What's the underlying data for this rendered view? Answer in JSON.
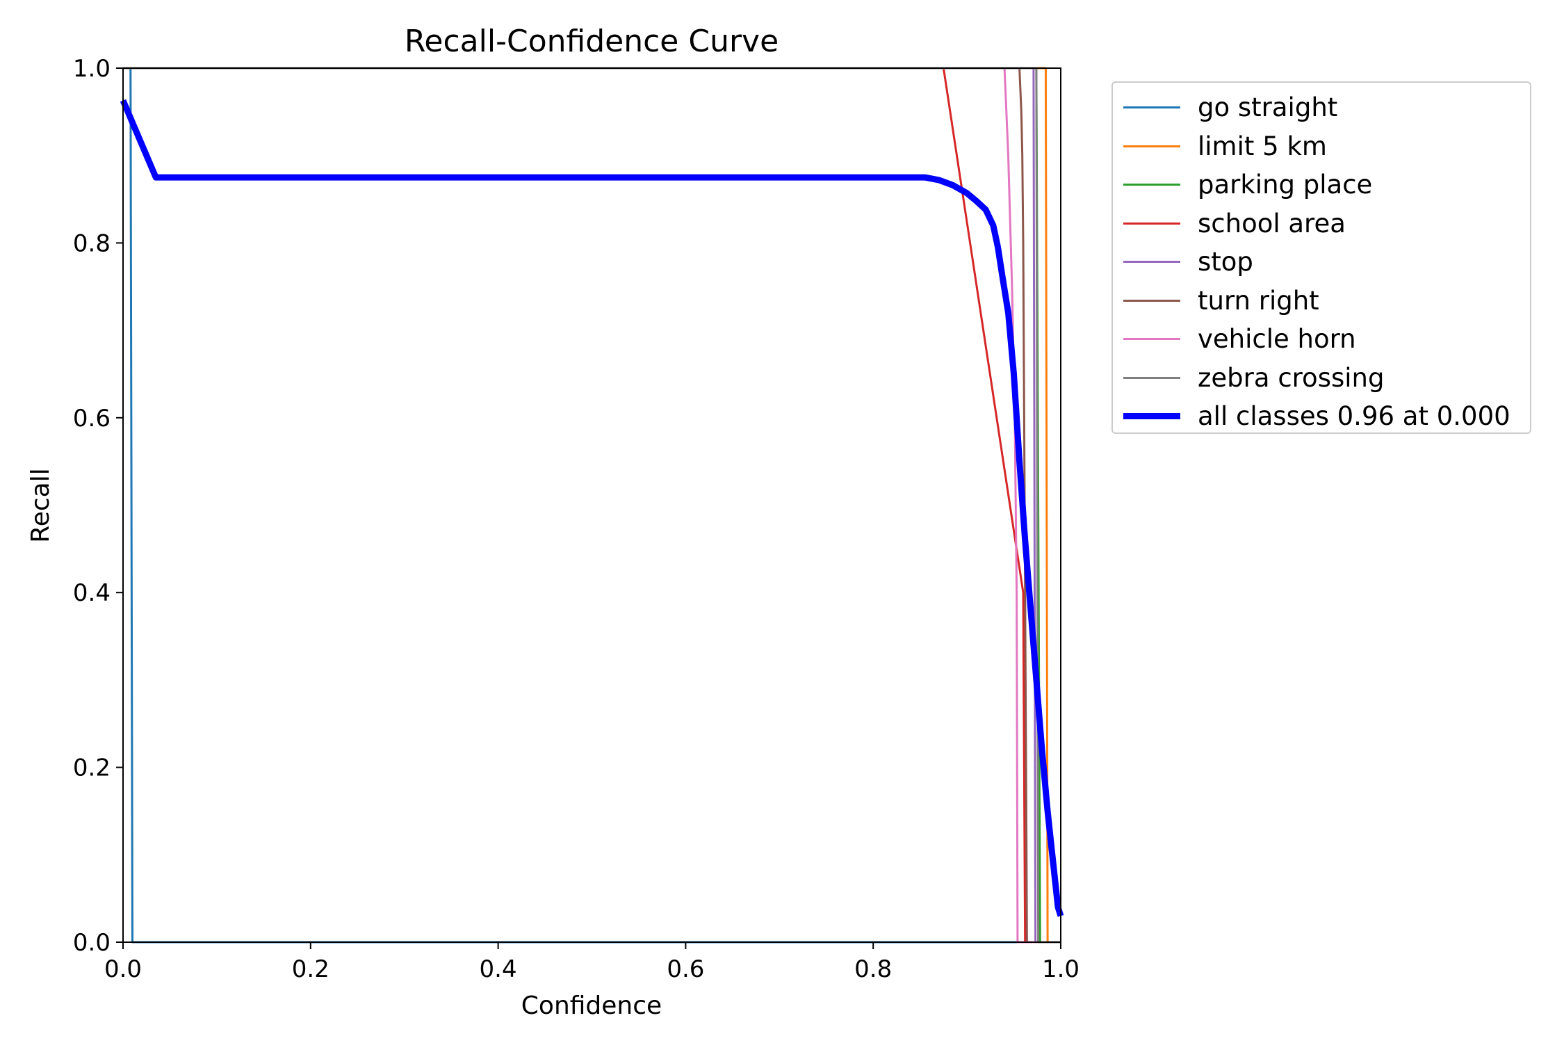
{
  "chart_data": {
    "type": "line",
    "title": "Recall-Confidence Curve",
    "xlabel": "Confidence",
    "ylabel": "Recall",
    "xlim": [
      0,
      1
    ],
    "ylim": [
      0,
      1
    ],
    "xticks": [
      "0.0",
      "0.2",
      "0.4",
      "0.6",
      "0.8",
      "1.0"
    ],
    "yticks": [
      "0.0",
      "0.2",
      "0.4",
      "0.6",
      "0.8",
      "1.0"
    ],
    "grid": false,
    "legend_position": "outside-right",
    "series": [
      {
        "name": "go straight",
        "color": "#1f77b4",
        "width": 3,
        "x": [
          0.0,
          0.008,
          0.009,
          0.01,
          1.0
        ],
        "y": [
          1.0,
          1.0,
          0.5,
          0.0,
          0.0
        ]
      },
      {
        "name": "limit 5 km",
        "color": "#ff7f0e",
        "width": 3,
        "x": [
          0.0,
          0.984,
          0.985,
          0.986,
          1.0
        ],
        "y": [
          1.0,
          1.0,
          0.5,
          0.0,
          0.0
        ]
      },
      {
        "name": "parking place",
        "color": "#2ca02c",
        "width": 3,
        "x": [
          0.0,
          0.974,
          0.976,
          0.978,
          1.0
        ],
        "y": [
          1.0,
          1.0,
          0.5,
          0.0,
          0.0
        ]
      },
      {
        "name": "school area",
        "color": "#d62728",
        "width": 3,
        "x": [
          0.0,
          0.875,
          0.96,
          0.962,
          1.0
        ],
        "y": [
          1.0,
          1.0,
          0.4,
          0.0,
          0.0
        ]
      },
      {
        "name": "stop",
        "color": "#9467bd",
        "width": 3,
        "x": [
          0.0,
          0.971,
          0.972,
          0.973,
          1.0
        ],
        "y": [
          1.0,
          1.0,
          0.5,
          0.0,
          0.0
        ]
      },
      {
        "name": "turn right",
        "color": "#8c564b",
        "width": 3,
        "x": [
          0.0,
          0.956,
          0.958,
          0.959,
          0.96,
          0.961,
          0.962,
          0.963,
          0.964,
          1.0
        ],
        "y": [
          1.0,
          1.0,
          0.95,
          0.9,
          0.8,
          0.6,
          0.4,
          0.2,
          0.0,
          0.0
        ]
      },
      {
        "name": "vehicle horn",
        "color": "#e377c2",
        "width": 3,
        "x": [
          0.0,
          0.94,
          0.944,
          0.948,
          0.951,
          0.953,
          0.954,
          1.0
        ],
        "y": [
          1.0,
          1.0,
          0.9,
          0.75,
          0.6,
          0.4,
          0.0,
          0.0
        ]
      },
      {
        "name": "zebra crossing",
        "color": "#7f7f7f",
        "width": 3,
        "x": [
          0.0,
          0.974,
          0.975,
          0.976,
          1.0
        ],
        "y": [
          1.0,
          1.0,
          0.5,
          0.0,
          0.0
        ]
      },
      {
        "name": "all classes 0.96 at 0.000",
        "color": "#0000ff",
        "width": 9,
        "x": [
          0.0,
          0.035,
          0.05,
          0.2,
          0.4,
          0.6,
          0.8,
          0.855,
          0.87,
          0.885,
          0.9,
          0.91,
          0.92,
          0.928,
          0.933,
          0.938,
          0.944,
          0.95,
          0.956,
          0.962,
          0.968,
          0.974,
          0.98,
          0.986,
          0.992,
          0.997,
          1.0
        ],
        "y": [
          0.963,
          0.875,
          0.875,
          0.875,
          0.875,
          0.875,
          0.875,
          0.875,
          0.872,
          0.866,
          0.857,
          0.848,
          0.838,
          0.82,
          0.795,
          0.76,
          0.72,
          0.65,
          0.55,
          0.46,
          0.38,
          0.3,
          0.22,
          0.15,
          0.09,
          0.04,
          0.03
        ]
      }
    ]
  }
}
